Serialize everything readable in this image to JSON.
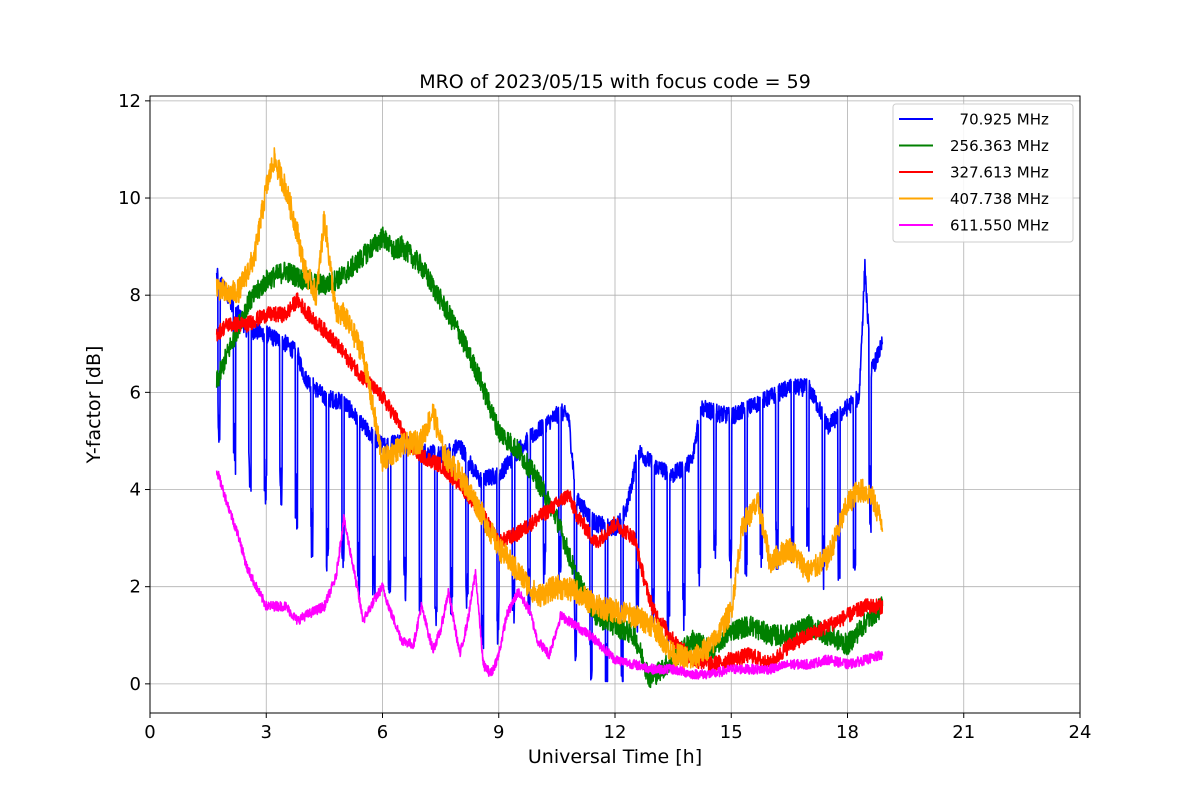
{
  "chart_data": {
    "type": "line",
    "title": "MRO of 2023/05/15 with focus code = 59",
    "xlabel": "Universal Time [h]",
    "ylabel": "Y-factor [dB]",
    "xlim": [
      0,
      24
    ],
    "ylim": [
      -0.6,
      12.1
    ],
    "xticks": [
      0,
      3,
      6,
      9,
      12,
      15,
      18,
      21,
      24
    ],
    "yticks": [
      0,
      2,
      4,
      6,
      8,
      10,
      12
    ],
    "grid": true,
    "legend_position": "top-right",
    "series": [
      {
        "name": "  70.925 MHz",
        "color": "#0000ff",
        "noise": 0.18,
        "dips": {
          "start": 1.75,
          "end": 18.9,
          "period": 0.4,
          "width": 0.06,
          "depth": 3.5
        },
        "x": [
          1.72,
          2.0,
          2.5,
          3.0,
          3.5,
          3.8,
          4.0,
          4.5,
          5.0,
          5.5,
          6.0,
          6.5,
          7.0,
          7.5,
          8.0,
          8.5,
          9.0,
          9.3,
          9.6,
          10.0,
          10.3,
          10.6,
          10.8,
          11.0,
          11.5,
          12.0,
          12.3,
          12.6,
          13.0,
          13.5,
          14.0,
          14.2,
          14.5,
          15.0,
          15.5,
          16.0,
          16.5,
          17.0,
          17.5,
          18.0,
          18.3,
          18.45,
          18.6,
          18.9
        ],
        "y": [
          8.4,
          8.0,
          7.3,
          7.2,
          7.0,
          6.8,
          6.3,
          5.9,
          5.8,
          5.3,
          4.9,
          5.0,
          4.8,
          4.7,
          4.9,
          4.2,
          4.3,
          4.6,
          4.9,
          5.2,
          5.4,
          5.6,
          5.5,
          3.8,
          3.3,
          3.2,
          3.6,
          4.8,
          4.5,
          4.3,
          4.6,
          5.7,
          5.6,
          5.5,
          5.7,
          5.9,
          6.1,
          6.1,
          5.3,
          5.7,
          5.9,
          8.6,
          6.4,
          7.0
        ]
      },
      {
        "name": "256.363 MHz",
        "color": "#008000",
        "noise": 0.22,
        "x": [
          1.72,
          2.0,
          2.5,
          3.0,
          3.5,
          4.0,
          4.5,
          5.0,
          5.5,
          6.0,
          6.3,
          6.5,
          7.0,
          7.5,
          8.0,
          8.5,
          9.0,
          9.5,
          10.0,
          10.5,
          11.0,
          11.5,
          12.0,
          12.5,
          12.9,
          13.5,
          14.0,
          14.5,
          15.0,
          15.5,
          16.0,
          16.5,
          17.0,
          17.5,
          18.0,
          18.5,
          18.9
        ],
        "y": [
          6.2,
          6.8,
          7.8,
          8.3,
          8.5,
          8.3,
          8.2,
          8.4,
          8.8,
          9.2,
          8.9,
          9.0,
          8.6,
          7.9,
          7.2,
          6.3,
          5.2,
          4.8,
          4.2,
          3.4,
          2.2,
          1.4,
          1.2,
          1.0,
          0.1,
          0.5,
          0.9,
          0.7,
          1.1,
          1.2,
          1.0,
          1.0,
          1.2,
          1.0,
          0.8,
          1.3,
          1.6
        ]
      },
      {
        "name": "327.613 MHz",
        "color": "#ff0000",
        "noise": 0.16,
        "x": [
          1.72,
          2.0,
          2.5,
          3.0,
          3.5,
          3.8,
          4.2,
          4.6,
          5.0,
          5.5,
          6.0,
          6.4,
          6.6,
          7.0,
          7.5,
          8.0,
          8.5,
          9.0,
          9.5,
          10.0,
          10.5,
          10.8,
          11.0,
          11.5,
          12.0,
          12.5,
          12.8,
          13.0,
          13.5,
          14.0,
          14.5,
          15.0,
          15.5,
          16.0,
          16.5,
          17.0,
          17.5,
          18.0,
          18.5,
          18.9
        ],
        "y": [
          7.2,
          7.4,
          7.4,
          7.6,
          7.6,
          7.9,
          7.5,
          7.2,
          6.8,
          6.3,
          5.9,
          5.4,
          5.0,
          4.7,
          4.5,
          4.1,
          3.6,
          2.9,
          3.1,
          3.4,
          3.7,
          3.9,
          3.5,
          2.9,
          3.3,
          3.0,
          2.0,
          1.5,
          0.9,
          0.5,
          0.4,
          0.5,
          0.6,
          0.4,
          0.8,
          1.0,
          1.2,
          1.4,
          1.6,
          1.6
        ]
      },
      {
        "name": "407.738 MHz",
        "color": "#ffa500",
        "noise": 0.25,
        "x": [
          1.72,
          2.0,
          2.3,
          2.7,
          3.0,
          3.2,
          3.5,
          3.8,
          4.0,
          4.3,
          4.5,
          4.8,
          5.0,
          5.5,
          6.0,
          6.5,
          7.0,
          7.3,
          7.6,
          8.0,
          8.5,
          9.0,
          9.5,
          10.0,
          10.5,
          11.0,
          11.5,
          12.0,
          12.5,
          13.0,
          13.5,
          14.0,
          14.5,
          15.0,
          15.3,
          15.7,
          16.0,
          16.5,
          17.0,
          17.5,
          18.0,
          18.3,
          18.6,
          18.9
        ],
        "y": [
          8.2,
          8.0,
          8.1,
          8.8,
          10.2,
          10.8,
          10.2,
          9.3,
          8.5,
          8.0,
          9.6,
          7.6,
          7.6,
          6.8,
          4.6,
          4.9,
          5.0,
          5.6,
          4.7,
          4.3,
          3.6,
          2.8,
          2.3,
          1.8,
          2.0,
          1.9,
          1.6,
          1.5,
          1.4,
          1.2,
          0.6,
          0.5,
          0.8,
          1.5,
          3.3,
          3.7,
          2.5,
          2.8,
          2.3,
          2.6,
          3.7,
          4.0,
          3.9,
          3.3
        ]
      },
      {
        "name": "611.550 MHz",
        "color": "#ff00ff",
        "noise": 0.1,
        "x": [
          1.72,
          2.0,
          2.3,
          2.5,
          2.8,
          3.0,
          3.5,
          3.8,
          4.0,
          4.5,
          4.8,
          5.0,
          5.2,
          5.5,
          5.7,
          6.0,
          6.2,
          6.5,
          6.8,
          7.0,
          7.3,
          7.5,
          7.7,
          8.0,
          8.2,
          8.4,
          8.6,
          8.8,
          9.0,
          9.2,
          9.5,
          9.8,
          10.0,
          10.3,
          10.6,
          11.0,
          11.5,
          12.0,
          12.5,
          13.0,
          13.5,
          14.0,
          14.5,
          15.0,
          15.5,
          16.0,
          16.5,
          17.0,
          17.5,
          18.0,
          18.5,
          18.9
        ],
        "y": [
          4.4,
          3.7,
          3.0,
          2.4,
          1.9,
          1.6,
          1.6,
          1.3,
          1.4,
          1.6,
          2.2,
          3.4,
          2.6,
          1.3,
          1.6,
          2.0,
          1.5,
          0.9,
          0.8,
          1.6,
          0.7,
          1.1,
          1.9,
          0.6,
          1.3,
          2.3,
          0.4,
          0.2,
          0.6,
          1.4,
          1.9,
          1.5,
          0.9,
          0.6,
          1.4,
          1.2,
          0.9,
          0.5,
          0.4,
          0.3,
          0.3,
          0.2,
          0.2,
          0.3,
          0.3,
          0.3,
          0.4,
          0.4,
          0.5,
          0.4,
          0.5,
          0.6
        ]
      }
    ]
  }
}
